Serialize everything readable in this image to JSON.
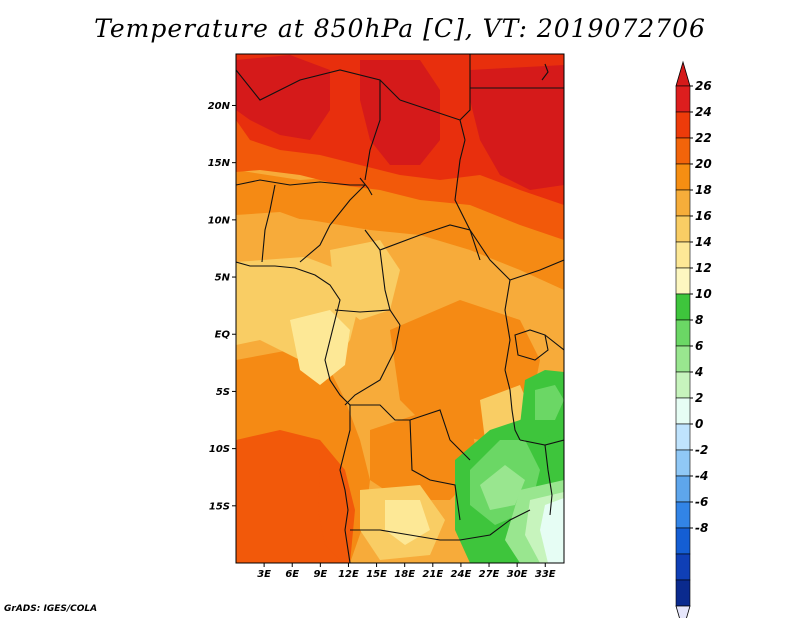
{
  "title": "Temperature at 850hPa [C], VT: 2019072706",
  "credit": "GrADS: IGES/COLA",
  "map": {
    "lat_ticks": [
      {
        "value": 20,
        "label": "20N"
      },
      {
        "value": 15,
        "label": "15N"
      },
      {
        "value": 10,
        "label": "10N"
      },
      {
        "value": 5,
        "label": "5N"
      },
      {
        "value": 0,
        "label": "EQ"
      },
      {
        "value": -5,
        "label": "5S"
      },
      {
        "value": -10,
        "label": "10S"
      },
      {
        "value": -15,
        "label": "15S"
      }
    ],
    "lon_ticks": [
      {
        "value": 3,
        "label": "3E"
      },
      {
        "value": 6,
        "label": "6E"
      },
      {
        "value": 9,
        "label": "9E"
      },
      {
        "value": 12,
        "label": "12E"
      },
      {
        "value": 15,
        "label": "15E"
      },
      {
        "value": 18,
        "label": "18E"
      },
      {
        "value": 21,
        "label": "21E"
      },
      {
        "value": 24,
        "label": "24E"
      },
      {
        "value": 27,
        "label": "27E"
      },
      {
        "value": 30,
        "label": "30E"
      },
      {
        "value": 33,
        "label": "33E"
      }
    ],
    "lon_range": [
      0,
      35
    ],
    "lat_range": [
      -20,
      24.5
    ]
  },
  "colorbar": {
    "levels": [
      {
        "label": "26",
        "color": "#dd1e1e"
      },
      {
        "label": "24",
        "color": "#ed3b0a"
      },
      {
        "label": "22",
        "color": "#f2640a"
      },
      {
        "label": "20",
        "color": "#f68e12"
      },
      {
        "label": "18",
        "color": "#f6ad3a"
      },
      {
        "label": "16",
        "color": "#f9cd64"
      },
      {
        "label": "14",
        "color": "#fde896"
      },
      {
        "label": "12",
        "color": "#fdf7c0"
      },
      {
        "label": "10",
        "color": "#3ec53c"
      },
      {
        "label": "8",
        "color": "#6bd765"
      },
      {
        "label": "6",
        "color": "#99e68f"
      },
      {
        "label": "4",
        "color": "#c7f4bd"
      },
      {
        "label": "2",
        "color": "#e6fdf4"
      },
      {
        "label": "0",
        "color": "#bfe3fd"
      },
      {
        "label": "-2",
        "color": "#90c8f6"
      },
      {
        "label": "-4",
        "color": "#5ea6ec"
      },
      {
        "label": "-6",
        "color": "#3284e6"
      },
      {
        "label": "-8",
        "color": "#145ed4"
      }
    ],
    "over_color": "#d51a1a",
    "mid_dark_colors": [
      "#0f3fb6",
      "#0a2a8e"
    ],
    "under_color": "#e6e6fb"
  },
  "field_colors": {
    "c26": "#d51a1a",
    "c24": "#e82f0d",
    "c22": "#f2590a",
    "c20": "#f58a14",
    "c18": "#f7ab3a",
    "c16": "#f9cd64",
    "c14": "#fde896",
    "c12": "#fdf7c0",
    "g10": "#3ec53c",
    "g8": "#6bd765",
    "g6": "#99e68f",
    "g4": "#c7f4bd",
    "g2": "#e6fdf4"
  }
}
